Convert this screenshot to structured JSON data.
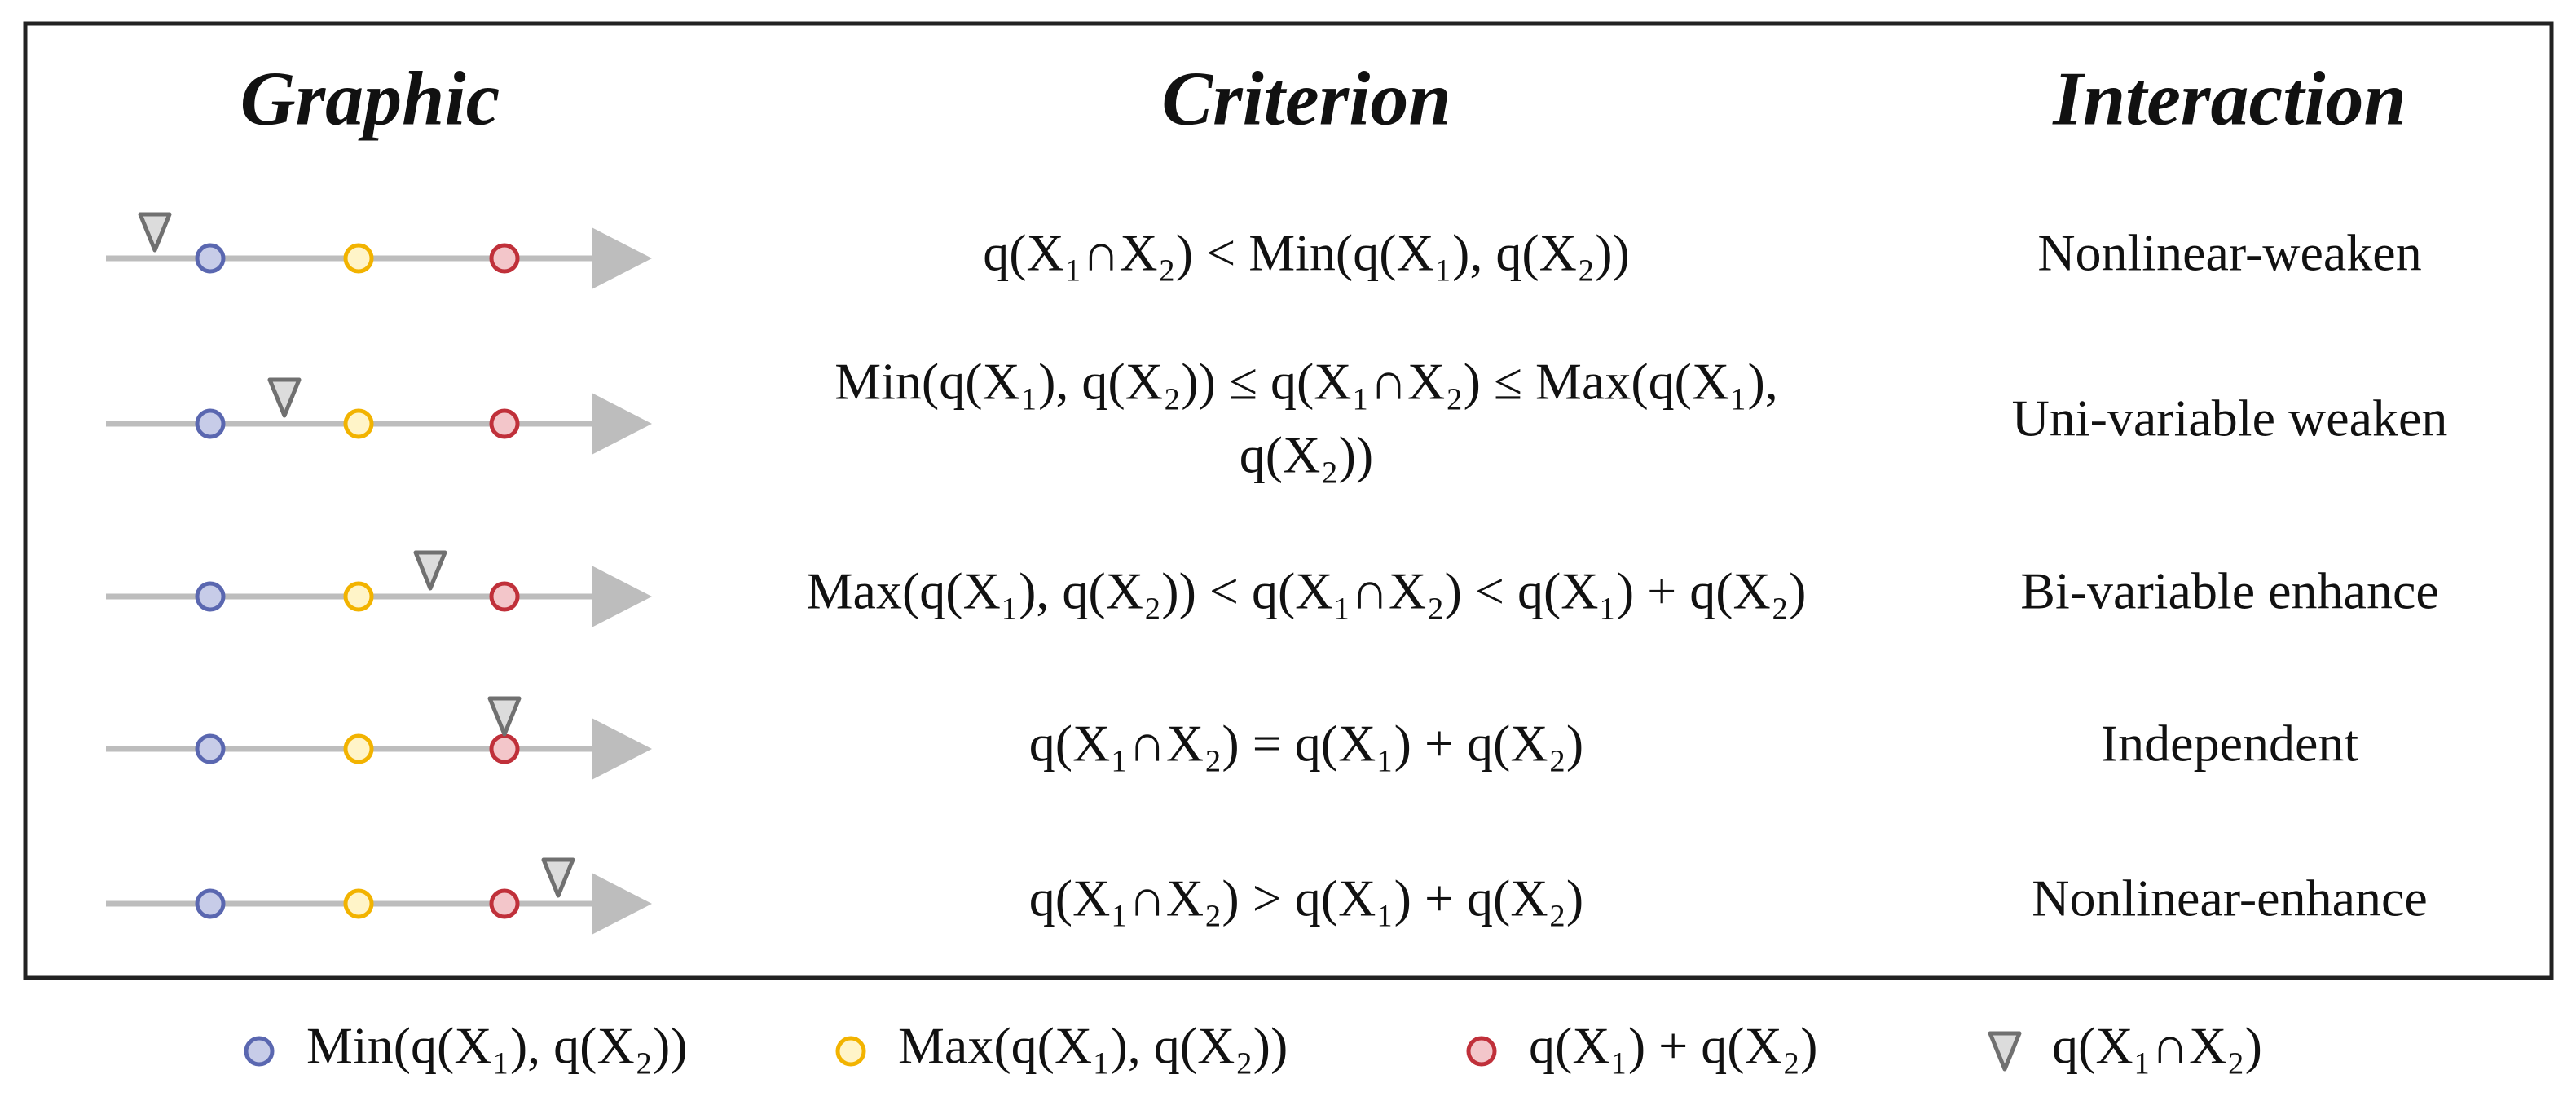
{
  "header": {
    "graphic": "Graphic",
    "criterion": "Criterion",
    "interaction": "Interaction"
  },
  "rows": [
    {
      "criterion": [
        "q(X₁∩X₂) < Min(q(X₁), q(X₂))"
      ],
      "interaction": "Nonlinear-weaken"
    },
    {
      "criterion": [
        "Min(q(X₁), q(X₂)) ≤ q(X₁∩X₂) ≤ Max(q(X₁),",
        "q(X₂))"
      ],
      "interaction": "Uni-variable weaken"
    },
    {
      "criterion": [
        "Max(q(X₁), q(X₂)) < q(X₁∩X₂) < q(X₁) + q(X₂)"
      ],
      "interaction": "Bi-variable enhance"
    },
    {
      "criterion": [
        "q(X₁∩X₂) = q(X₁) + q(X₂)"
      ],
      "interaction": "Independent"
    },
    {
      "criterion": [
        "q(X₁∩X₂) > q(X₁) + q(X₂)"
      ],
      "interaction": "Nonlinear-enhance"
    }
  ],
  "legend": [
    "Min(q(X₁), q(X₂))",
    "Max(q(X₁), q(X₂))",
    "q(X₁) + q(X₂)",
    "q(X₁∩X₂)"
  ]
}
